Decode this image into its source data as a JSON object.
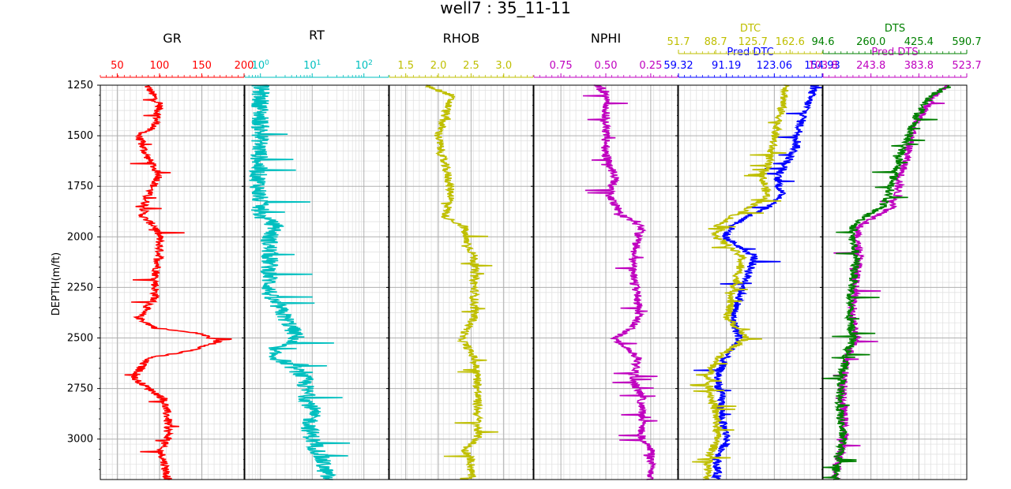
{
  "figure": {
    "title": "well7 : 35_11-11",
    "ylabel": "DEPTH(m/ft)"
  },
  "chart_data": {
    "type": "line",
    "depth": {
      "label": "DEPTH(m/ft)",
      "range": [
        1250,
        3200
      ],
      "ticks": [
        "1250",
        "1500",
        "1750",
        "2000",
        "2250",
        "2500",
        "2750",
        "3000"
      ],
      "tick_values": [
        1250,
        1500,
        1750,
        2000,
        2250,
        2500,
        2750,
        3000
      ]
    },
    "tracks": [
      {
        "name": "GR",
        "scale": "linear",
        "xlim": [
          30,
          200
        ],
        "curves": [
          {
            "label": "GR",
            "color": "#ff0000",
            "tick_values": [
              50,
              100,
              150,
              200
            ],
            "tick_labels": [
              "50",
              "100",
              "150",
              "200"
            ],
            "profile": [
              [
                1250,
                85
              ],
              [
                1350,
                100
              ],
              [
                1450,
                95
              ],
              [
                1500,
                75
              ],
              [
                1600,
                85
              ],
              [
                1700,
                100
              ],
              [
                1800,
                85
              ],
              [
                1900,
                80
              ],
              [
                1950,
                95
              ],
              [
                2000,
                100
              ],
              [
                2100,
                100
              ],
              [
                2200,
                95
              ],
              [
                2300,
                95
              ],
              [
                2400,
                75
              ],
              [
                2450,
                95
              ],
              [
                2480,
                150
              ],
              [
                2520,
                170
              ],
              [
                2560,
                140
              ],
              [
                2600,
                85
              ],
              [
                2700,
                70
              ],
              [
                2800,
                105
              ],
              [
                2900,
                110
              ],
              [
                3000,
                110
              ],
              [
                3050,
                100
              ],
              [
                3100,
                105
              ],
              [
                3200,
                110
              ]
            ]
          }
        ]
      },
      {
        "name": "RT",
        "scale": "log",
        "xlim": [
          0.5,
          300
        ],
        "curves": [
          {
            "label": "RT",
            "color": "#00bfbf",
            "tick_values": [
              1,
              10,
              100
            ],
            "tick_labels": [
              "10",
              "10",
              "10"
            ],
            "tick_exponents": [
              "0",
              "1",
              "2"
            ],
            "profile": [
              [
                1250,
                1.0
              ],
              [
                1500,
                1.0
              ],
              [
                1700,
                0.9
              ],
              [
                1900,
                1.0
              ],
              [
                1950,
                2.0
              ],
              [
                2000,
                1.5
              ],
              [
                2100,
                1.5
              ],
              [
                2300,
                1.5
              ],
              [
                2400,
                3.0
              ],
              [
                2500,
                5.0
              ],
              [
                2550,
                1.5
              ],
              [
                2600,
                2.0
              ],
              [
                2700,
                7.0
              ],
              [
                2800,
                8.0
              ],
              [
                2850,
                10
              ],
              [
                2950,
                9.0
              ],
              [
                3000,
                10
              ],
              [
                3100,
                15
              ],
              [
                3200,
                20
              ]
            ]
          }
        ]
      },
      {
        "name": "RHOB",
        "scale": "linear",
        "xlim": [
          1.25,
          3.45
        ],
        "curves": [
          {
            "label": "RHOB",
            "color": "#bfbf00",
            "tick_values": [
              1.5,
              2.0,
              2.5,
              3.0
            ],
            "tick_labels": [
              "1.5",
              "2.0",
              "2.5",
              "3.0"
            ],
            "profile": [
              [
                1250,
                1.8
              ],
              [
                1300,
                2.2
              ],
              [
                1400,
                2.1
              ],
              [
                1500,
                2.0
              ],
              [
                1600,
                2.05
              ],
              [
                1700,
                2.15
              ],
              [
                1800,
                2.2
              ],
              [
                1900,
                2.1
              ],
              [
                1950,
                2.4
              ],
              [
                2000,
                2.4
              ],
              [
                2100,
                2.55
              ],
              [
                2200,
                2.55
              ],
              [
                2300,
                2.55
              ],
              [
                2400,
                2.55
              ],
              [
                2500,
                2.35
              ],
              [
                2600,
                2.55
              ],
              [
                2700,
                2.6
              ],
              [
                2800,
                2.6
              ],
              [
                2900,
                2.6
              ],
              [
                3000,
                2.6
              ],
              [
                3050,
                2.4
              ],
              [
                3100,
                2.5
              ],
              [
                3200,
                2.5
              ]
            ]
          }
        ]
      },
      {
        "name": "NPHI",
        "scale": "reversed",
        "xlim": [
          0.9,
          0.1
        ],
        "curves": [
          {
            "label": "NPHI",
            "color": "#bf00bf",
            "tick_values": [
              0.75,
              0.5,
              0.25
            ],
            "tick_labels": [
              "0.75",
              "0.50",
              "0.25"
            ],
            "profile": [
              [
                1250,
                0.55
              ],
              [
                1300,
                0.5
              ],
              [
                1400,
                0.5
              ],
              [
                1500,
                0.5
              ],
              [
                1600,
                0.5
              ],
              [
                1700,
                0.45
              ],
              [
                1800,
                0.48
              ],
              [
                1900,
                0.4
              ],
              [
                1950,
                0.3
              ],
              [
                2000,
                0.32
              ],
              [
                2100,
                0.35
              ],
              [
                2200,
                0.35
              ],
              [
                2300,
                0.32
              ],
              [
                2400,
                0.32
              ],
              [
                2450,
                0.35
              ],
              [
                2500,
                0.45
              ],
              [
                2600,
                0.32
              ],
              [
                2700,
                0.35
              ],
              [
                2800,
                0.3
              ],
              [
                2900,
                0.3
              ],
              [
                3000,
                0.3
              ],
              [
                3050,
                0.25
              ],
              [
                3100,
                0.25
              ],
              [
                3200,
                0.25
              ]
            ]
          }
        ]
      },
      {
        "name": "",
        "scale": "linear",
        "curves": [
          {
            "label": "Pred DTC",
            "color": "#0000ff",
            "xlim": [
              59.32,
              154.93
            ],
            "tick_values": [
              59.32,
              91.19,
              123.06,
              154.93
            ],
            "tick_labels": [
              "59.32",
              "91.19",
              "123.06",
              "154.93"
            ],
            "profile": [
              [
                1250,
                150
              ],
              [
                1350,
                145
              ],
              [
                1450,
                140
              ],
              [
                1550,
                138
              ],
              [
                1650,
                130
              ],
              [
                1700,
                125
              ],
              [
                1800,
                128
              ],
              [
                1850,
                120
              ],
              [
                1900,
                105
              ],
              [
                1950,
                95
              ],
              [
                2000,
                90
              ],
              [
                2100,
                110
              ],
              [
                2200,
                105
              ],
              [
                2300,
                100
              ],
              [
                2400,
                95
              ],
              [
                2500,
                100
              ],
              [
                2600,
                90
              ],
              [
                2700,
                85
              ],
              [
                2800,
                88
              ],
              [
                2900,
                88
              ],
              [
                3000,
                92
              ],
              [
                3100,
                85
              ],
              [
                3200,
                85
              ]
            ]
          },
          {
            "label": "DTC",
            "color": "#bfbf00",
            "xlim": [
              51.7,
              194.6
            ],
            "tick_values": [
              51.7,
              88.7,
              125.7,
              162.6
            ],
            "tick_labels": [
              "51.7",
              "88.7",
              "125.7",
              "162.6"
            ],
            "profile": [
              [
                1250,
                160
              ],
              [
                1350,
                155
              ],
              [
                1450,
                150
              ],
              [
                1550,
                145
              ],
              [
                1650,
                140
              ],
              [
                1700,
                135
              ],
              [
                1800,
                140
              ],
              [
                1850,
                125
              ],
              [
                1900,
                105
              ],
              [
                1950,
                90
              ],
              [
                2000,
                90
              ],
              [
                2100,
                115
              ],
              [
                2200,
                110
              ],
              [
                2300,
                105
              ],
              [
                2400,
                100
              ],
              [
                2500,
                120
              ],
              [
                2600,
                90
              ],
              [
                2700,
                80
              ],
              [
                2800,
                85
              ],
              [
                2900,
                90
              ],
              [
                3000,
                90
              ],
              [
                3100,
                82
              ],
              [
                3200,
                80
              ]
            ]
          }
        ]
      },
      {
        "name": "",
        "scale": "linear",
        "curves": [
          {
            "label": "Pred DTS",
            "color": "#bf00bf",
            "xlim": [
              103.8,
              523.7
            ],
            "tick_values": [
              103.8,
              243.8,
              383.8,
              523.7
            ],
            "tick_labels": [
              "103.8",
              "243.8",
              "383.8",
              "523.7"
            ],
            "profile": [
              [
                1250,
                470
              ],
              [
                1300,
                430
              ],
              [
                1400,
                390
              ],
              [
                1500,
                360
              ],
              [
                1600,
                350
              ],
              [
                1700,
                330
              ],
              [
                1800,
                320
              ],
              [
                1850,
                310
              ],
              [
                1900,
                260
              ],
              [
                1950,
                210
              ],
              [
                2000,
                200
              ],
              [
                2100,
                210
              ],
              [
                2200,
                200
              ],
              [
                2300,
                195
              ],
              [
                2400,
                190
              ],
              [
                2500,
                200
              ],
              [
                2600,
                175
              ],
              [
                2700,
                165
              ],
              [
                2800,
                160
              ],
              [
                2900,
                165
              ],
              [
                3000,
                165
              ],
              [
                3100,
                150
              ],
              [
                3200,
                140
              ]
            ]
          },
          {
            "label": "DTS",
            "color": "#008000",
            "xlim": [
              94.6,
              590.7
            ],
            "tick_values": [
              94.6,
              260.0,
              425.4,
              590.7
            ],
            "tick_labels": [
              "94.6",
              "260.0",
              "425.4",
              "590.7"
            ],
            "profile": [
              [
                1250,
                540
              ],
              [
                1300,
                470
              ],
              [
                1400,
                420
              ],
              [
                1500,
                390
              ],
              [
                1600,
                360
              ],
              [
                1700,
                340
              ],
              [
                1800,
                320
              ],
              [
                1850,
                300
              ],
              [
                1900,
                240
              ],
              [
                1950,
                200
              ],
              [
                2000,
                195
              ],
              [
                2100,
                210
              ],
              [
                2200,
                200
              ],
              [
                2300,
                190
              ],
              [
                2400,
                185
              ],
              [
                2500,
                200
              ],
              [
                2600,
                170
              ],
              [
                2700,
                160
              ],
              [
                2800,
                150
              ],
              [
                2900,
                155
              ],
              [
                3000,
                165
              ],
              [
                3100,
                145
              ],
              [
                3200,
                135
              ]
            ]
          }
        ]
      }
    ]
  }
}
